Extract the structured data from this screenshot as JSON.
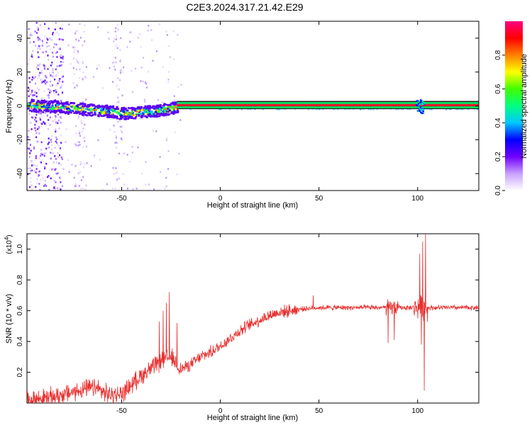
{
  "title": "C2E3.2024.317.21.42.E29",
  "colors": {
    "snr_line": "#e83030",
    "band_line": "#e8182a",
    "frame": "#000000"
  },
  "chart_data": [
    {
      "type": "heatmap",
      "xlabel": "Height of straight line (km)",
      "ylabel": "Frequency (Hz)",
      "xlim": [
        -98,
        131
      ],
      "ylim": [
        -50,
        50
      ],
      "xticks": [
        -50,
        0,
        50,
        100
      ],
      "yticks": [
        -40,
        -20,
        0,
        20,
        40
      ],
      "colorbar": {
        "label": "Normalized spectral amplitude",
        "range": [
          0,
          1
        ],
        "ticks": [
          0.0,
          0.2,
          0.4,
          0.6,
          0.8
        ],
        "colormap": [
          "#ffffff",
          "#c8a0ff",
          "#7000ff",
          "#0000ff",
          "#00c8ff",
          "#00ff80",
          "#40ff00",
          "#ffff00",
          "#ff8000",
          "#ff0000",
          "#ff0080"
        ]
      },
      "band": {
        "center_hz": 0.5,
        "half_width_hz": 2,
        "x_start": -22,
        "x_end": 131
      },
      "drift_points": [
        {
          "x": -95,
          "y": 0.5
        },
        {
          "x": -85,
          "y": 0
        },
        {
          "x": -75,
          "y": -1
        },
        {
          "x": -65,
          "y": -2
        },
        {
          "x": -55,
          "y": -3
        },
        {
          "x": -50,
          "y": -4
        },
        {
          "x": -45,
          "y": -4
        },
        {
          "x": -40,
          "y": -3
        },
        {
          "x": -35,
          "y": -3
        },
        {
          "x": -30,
          "y": -2
        },
        {
          "x": -25,
          "y": -1
        },
        {
          "x": -20,
          "y": 0.5
        }
      ]
    },
    {
      "type": "line",
      "xlabel": "Height of straight line (km)",
      "ylabel": "SNR (10 * v/v)",
      "scale_label": "(x10",
      "scale_exp": "4",
      "scale_close": ")",
      "xlim": [
        -98,
        131
      ],
      "ylim": [
        0,
        1.1
      ],
      "xticks": [
        -50,
        0,
        50,
        100
      ],
      "yticks": [
        0.2,
        0.4,
        0.6,
        0.8,
        1.0
      ],
      "ytick_labels": [
        "0.2",
        "0.4",
        "0.6",
        "0.8",
        "1.0"
      ],
      "trend": [
        {
          "x": -98,
          "y": 0.02
        },
        {
          "x": -85,
          "y": 0.04
        },
        {
          "x": -75,
          "y": 0.07
        },
        {
          "x": -65,
          "y": 0.1
        },
        {
          "x": -55,
          "y": 0.05
        },
        {
          "x": -50,
          "y": 0.06
        },
        {
          "x": -45,
          "y": 0.12
        },
        {
          "x": -40,
          "y": 0.18
        },
        {
          "x": -30,
          "y": 0.27
        },
        {
          "x": -25,
          "y": 0.3
        },
        {
          "x": -20,
          "y": 0.22
        },
        {
          "x": -15,
          "y": 0.25
        },
        {
          "x": -10,
          "y": 0.3
        },
        {
          "x": -5,
          "y": 0.33
        },
        {
          "x": 0,
          "y": 0.37
        },
        {
          "x": 5,
          "y": 0.42
        },
        {
          "x": 10,
          "y": 0.47
        },
        {
          "x": 15,
          "y": 0.51
        },
        {
          "x": 20,
          "y": 0.54
        },
        {
          "x": 25,
          "y": 0.57
        },
        {
          "x": 30,
          "y": 0.59
        },
        {
          "x": 40,
          "y": 0.61
        },
        {
          "x": 50,
          "y": 0.62
        },
        {
          "x": 80,
          "y": 0.62
        },
        {
          "x": 131,
          "y": 0.62
        }
      ],
      "spikes": [
        {
          "x": -26,
          "y": 0.72
        },
        {
          "x": -27.5,
          "y": 0.65
        },
        {
          "x": -29,
          "y": 0.6
        },
        {
          "x": -31,
          "y": 0.53
        },
        {
          "x": -22,
          "y": 0.52
        },
        {
          "x": -62,
          "y": 0.15
        },
        {
          "x": 47,
          "y": 0.7
        },
        {
          "x": 85,
          "y": 0.39
        },
        {
          "x": 86,
          "y": 0.66
        },
        {
          "x": 88,
          "y": 0.41
        },
        {
          "x": 100,
          "y": 0.55
        },
        {
          "x": 101,
          "y": 0.97
        },
        {
          "x": 101.8,
          "y": 0.38
        },
        {
          "x": 102.5,
          "y": 1.05
        },
        {
          "x": 103.2,
          "y": 0.08
        },
        {
          "x": 104,
          "y": 1.1
        }
      ]
    }
  ]
}
